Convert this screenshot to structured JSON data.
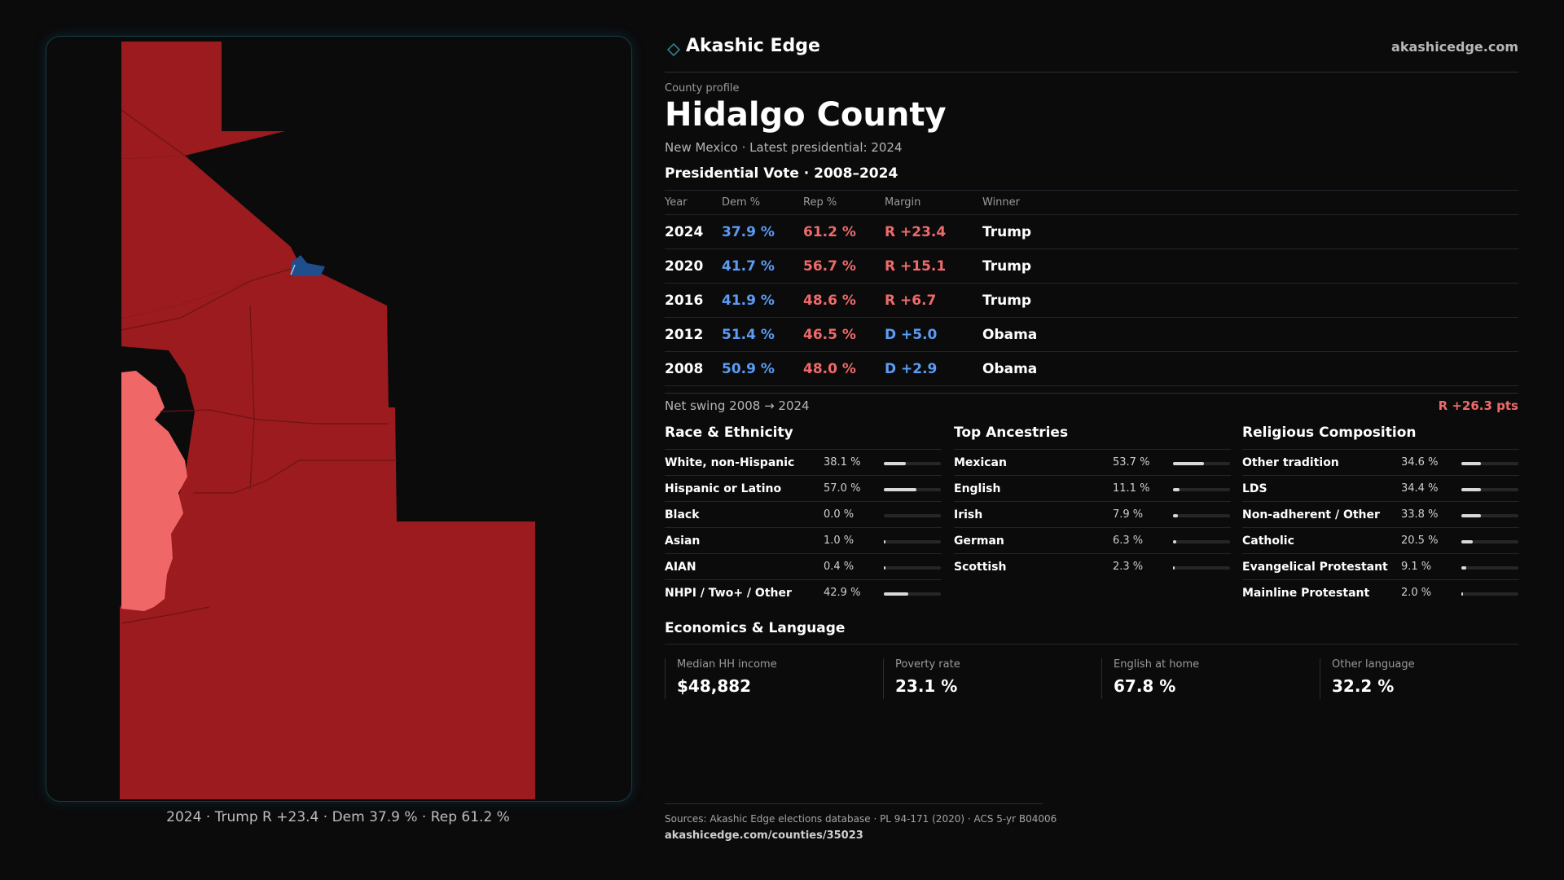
{
  "map": {
    "caption": "2024 · Trump R +23.4 · Dem 37.9 % · Rep 61.2 %",
    "colors": {
      "rep_strong": "#9b1b1e",
      "rep_light": "#f06767",
      "dem": "#1f4e8c",
      "frame": "#173a42"
    }
  },
  "header": {
    "brand": "Akashic Edge",
    "url": "akashicedge.com",
    "eyebrow": "County profile",
    "title": "Hidalgo County",
    "subtitle": "New Mexico · Latest presidential: 2024"
  },
  "vote": {
    "heading": "Presidential Vote · 2008–2024",
    "columns": [
      "Year",
      "Dem %",
      "Rep %",
      "Margin",
      "Winner"
    ],
    "rows": [
      {
        "year": "2024",
        "dem": "37.9 %",
        "rep": "61.2 %",
        "margin": "R +23.4",
        "party": "R",
        "winner": "Trump"
      },
      {
        "year": "2020",
        "dem": "41.7 %",
        "rep": "56.7 %",
        "margin": "R +15.1",
        "party": "R",
        "winner": "Trump"
      },
      {
        "year": "2016",
        "dem": "41.9 %",
        "rep": "48.6 %",
        "margin": "R +6.7",
        "party": "R",
        "winner": "Trump"
      },
      {
        "year": "2012",
        "dem": "51.4 %",
        "rep": "46.5 %",
        "margin": "D +5.0",
        "party": "D",
        "winner": "Obama"
      },
      {
        "year": "2008",
        "dem": "50.9 %",
        "rep": "48.0 %",
        "margin": "D +2.9",
        "party": "D",
        "winner": "Obama"
      }
    ],
    "swing_label": "Net swing 2008 → 2024",
    "swing_value": "R +26.3 pts"
  },
  "race": {
    "heading": "Race & Ethnicity",
    "items": [
      {
        "label": "White, non-Hispanic",
        "pct": "38.1 %",
        "value": 38.1
      },
      {
        "label": "Hispanic or Latino",
        "pct": "57.0 %",
        "value": 57.0
      },
      {
        "label": "Black",
        "pct": "0.0 %",
        "value": 0.0
      },
      {
        "label": "Asian",
        "pct": "1.0 %",
        "value": 1.0
      },
      {
        "label": "AIAN",
        "pct": "0.4 %",
        "value": 0.4
      },
      {
        "label": "NHPI / Two+ / Other",
        "pct": "42.9 %",
        "value": 42.9
      }
    ]
  },
  "ancestry": {
    "heading": "Top Ancestries",
    "items": [
      {
        "label": "Mexican",
        "pct": "53.7 %",
        "value": 53.7
      },
      {
        "label": "English",
        "pct": "11.1 %",
        "value": 11.1
      },
      {
        "label": "Irish",
        "pct": "7.9 %",
        "value": 7.9
      },
      {
        "label": "German",
        "pct": "6.3 %",
        "value": 6.3
      },
      {
        "label": "Scottish",
        "pct": "2.3 %",
        "value": 2.3
      }
    ]
  },
  "religion": {
    "heading": "Religious Composition",
    "items": [
      {
        "label": "Other tradition",
        "pct": "34.6 %",
        "value": 34.6
      },
      {
        "label": "LDS",
        "pct": "34.4 %",
        "value": 34.4
      },
      {
        "label": "Non-adherent / Other",
        "pct": "33.8 %",
        "value": 33.8
      },
      {
        "label": "Catholic",
        "pct": "20.5 %",
        "value": 20.5
      },
      {
        "label": "Evangelical Protestant",
        "pct": "9.1 %",
        "value": 9.1
      },
      {
        "label": "Mainline Protestant",
        "pct": "2.0 %",
        "value": 2.0
      }
    ]
  },
  "economics": {
    "heading": "Economics & Language",
    "stats": [
      {
        "label": "Median HH income",
        "value": "$48,882"
      },
      {
        "label": "Poverty rate",
        "value": "23.1 %"
      },
      {
        "label": "English at home",
        "value": "67.8 %"
      },
      {
        "label": "Other language",
        "value": "32.2 %"
      }
    ]
  },
  "sources": {
    "text": "Sources: Akashic Edge elections database · PL 94-171 (2020) · ACS 5-yr B04006",
    "url": "akashicedge.com/counties/35023"
  }
}
